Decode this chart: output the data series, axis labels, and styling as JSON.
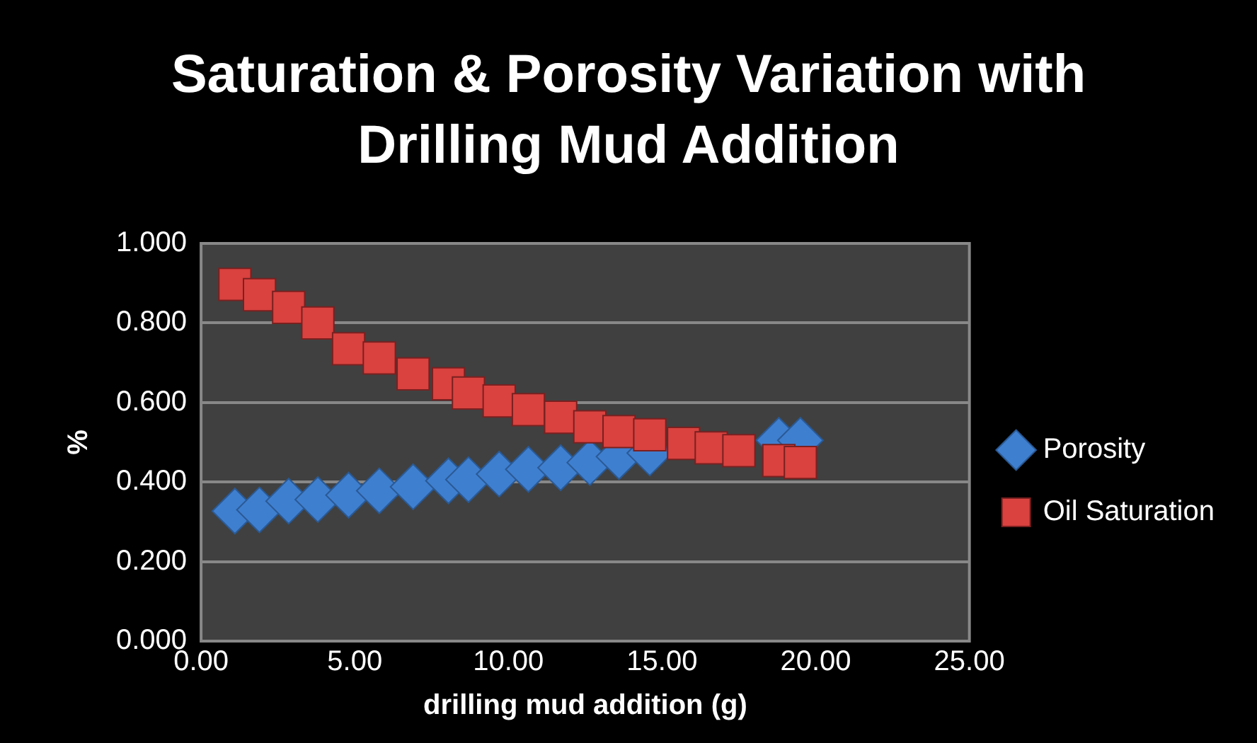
{
  "chart_data": {
    "type": "scatter",
    "title": "Saturation & Porosity Variation with Drilling Mud Addition",
    "xlabel": "drilling mud addition (g)",
    "ylabel": "%",
    "xlim": [
      0,
      25
    ],
    "xticks": [
      {
        "value": 0,
        "label": "0.00"
      },
      {
        "value": 5,
        "label": "5.00"
      },
      {
        "value": 10,
        "label": "10.00"
      },
      {
        "value": 15,
        "label": "15.00"
      },
      {
        "value": 20,
        "label": "20.00"
      },
      {
        "value": 25,
        "label": "25.00"
      }
    ],
    "ylim": [
      0,
      1
    ],
    "yticks": [
      {
        "value": 0,
        "label": "0.000"
      },
      {
        "value": 0.2,
        "label": "0.200"
      },
      {
        "value": 0.4,
        "label": "0.400"
      },
      {
        "value": 0.6,
        "label": "0.600"
      },
      {
        "value": 0.8,
        "label": "0.800"
      },
      {
        "value": 1,
        "label": "1.000"
      }
    ],
    "grid": "y",
    "legend": "right",
    "series": [
      {
        "name": "Porosity",
        "color": "#3f7fd0",
        "marker": "diamond",
        "x": [
          1.1,
          1.9,
          2.85,
          3.8,
          4.8,
          5.8,
          6.9,
          8.05,
          8.7,
          9.7,
          10.65,
          11.7,
          12.65,
          13.6,
          14.6,
          15.7,
          16.6,
          17.5,
          18.8,
          19.5
        ],
        "values": [
          0.327,
          0.33,
          0.352,
          0.356,
          0.367,
          0.378,
          0.388,
          0.403,
          0.406,
          0.42,
          0.432,
          0.436,
          0.449,
          0.464,
          0.473,
          null,
          null,
          null,
          0.505,
          0.505
        ]
      },
      {
        "name": "Oil Saturation",
        "color": "#d9423f",
        "marker": "square",
        "x": [
          1.1,
          1.9,
          2.85,
          3.8,
          4.8,
          5.8,
          6.9,
          8.05,
          8.7,
          9.7,
          10.65,
          11.7,
          12.65,
          13.6,
          14.6,
          15.7,
          16.6,
          17.5,
          18.8,
          19.5
        ],
        "values": [
          0.897,
          0.871,
          0.839,
          0.8,
          0.735,
          0.712,
          0.672,
          0.647,
          0.624,
          0.604,
          0.582,
          0.563,
          0.539,
          0.527,
          0.519,
          0.497,
          0.486,
          0.479,
          0.454,
          0.449
        ]
      }
    ]
  }
}
